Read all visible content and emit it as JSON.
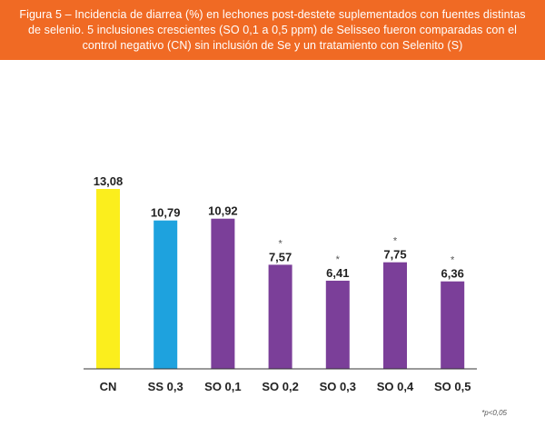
{
  "caption": "Figura 5 – Incidencia de diarrea (%) en lechones post-destete suplementados con fuentes distintas de selenio.  5 inclusiones crescientes (SO 0,1 a 0,5 ppm) de Selisseo fueron comparadas con el control negativo (CN) sin inclusión de Se y un tratamiento con Selenito (S)",
  "footnote": "*p<0,05",
  "colors": {
    "banner": "#f06a24",
    "cn": "#fbee1d",
    "ss": "#1ea2de",
    "so": "#7b3f99",
    "text": "#222222"
  },
  "chart_data": {
    "type": "bar",
    "categories": [
      "CN",
      "SS 0,3",
      "SO 0,1",
      "SO 0,2",
      "SO 0,3",
      "SO 0,4",
      "SO 0,5"
    ],
    "values": [
      13.08,
      10.79,
      10.92,
      7.57,
      6.41,
      7.75,
      6.36
    ],
    "value_labels": [
      "13,08",
      "10,79",
      "10,92",
      "7,57",
      "6,41",
      "7,75",
      "6,36"
    ],
    "significance": [
      "",
      "",
      "",
      "*",
      "*",
      "*",
      "*"
    ],
    "bar_colors": [
      "#fbee1d",
      "#1ea2de",
      "#7b3f99",
      "#7b3f99",
      "#7b3f99",
      "#7b3f99",
      "#7b3f99"
    ],
    "title": "",
    "xlabel": "",
    "ylabel": "",
    "ylim": [
      0,
      13.08
    ],
    "grid": false,
    "legend": "none"
  }
}
